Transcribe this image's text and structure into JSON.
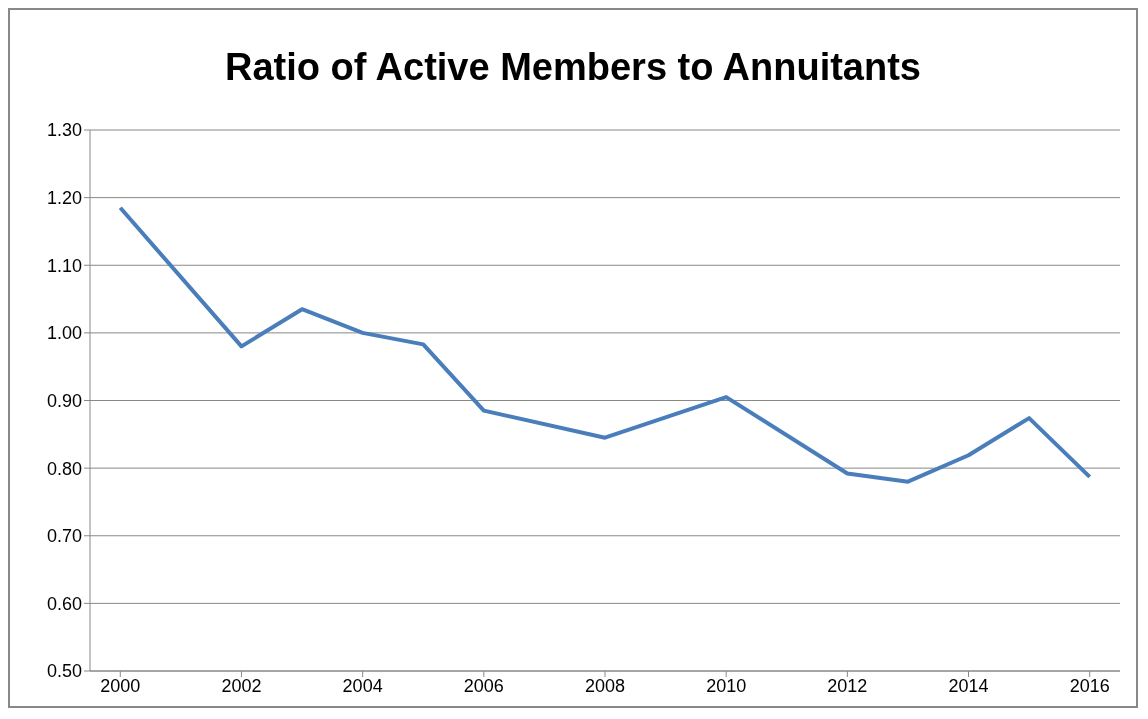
{
  "chart_data": {
    "type": "line",
    "title": "Ratio of Active Members to Annuitants",
    "x": [
      2000,
      2002,
      2003,
      2004,
      2005,
      2006,
      2008,
      2010,
      2012,
      2013,
      2014,
      2015,
      2016
    ],
    "series": [
      {
        "color": "#4a7ebb",
        "values": [
          1.185,
          0.98,
          1.035,
          1.0,
          0.983,
          0.885,
          0.845,
          0.905,
          0.792,
          0.78,
          0.819,
          0.874,
          0.787
        ]
      }
    ],
    "xlim": [
      1999.5,
      2016.5
    ],
    "xticks": [
      2000,
      2002,
      2004,
      2006,
      2008,
      2010,
      2012,
      2014,
      2016
    ],
    "ylim": [
      0.5,
      1.3
    ],
    "yticks": [
      {
        "value": 0.5,
        "label": "0.50"
      },
      {
        "value": 0.6,
        "label": "0.60"
      },
      {
        "value": 0.7,
        "label": "0.70"
      },
      {
        "value": 0.8,
        "label": "0.80"
      },
      {
        "value": 0.9,
        "label": "0.90"
      },
      {
        "value": 1.0,
        "label": "1.00"
      },
      {
        "value": 1.1,
        "label": "1.10"
      },
      {
        "value": 1.2,
        "label": "1.20"
      },
      {
        "value": 1.3,
        "label": "1.30"
      }
    ],
    "grid": "y",
    "marker": "none",
    "line_style": "solid"
  }
}
